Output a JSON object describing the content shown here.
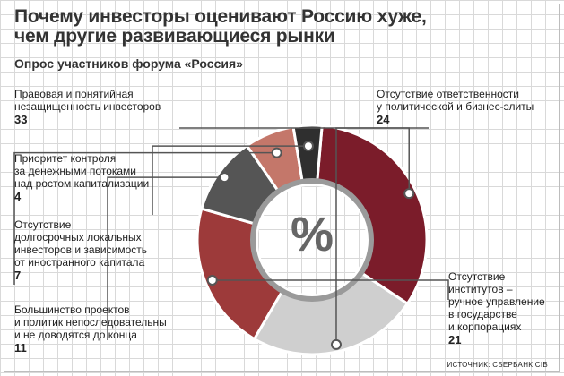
{
  "header": {
    "title": "Почему инвесторы оценивают Россию хуже,\nчем другие развивающиеся рынки",
    "subtitle": "Опрос участников форума «Россия»"
  },
  "center_symbol": "%",
  "source": "ИСТОЧНИК: СБЕРБАНК CIB",
  "colors": {
    "dark_red": "#7b1c2a",
    "light_gray": "#cfcfcf",
    "red": "#9d3a3a",
    "dark_gray": "#555555",
    "salmon": "#c4776a",
    "near_black": "#2f2f2f"
  },
  "chart_data": {
    "type": "pie",
    "donut": true,
    "start_angle_deg": -85,
    "slices": [
      {
        "label": "Правовая и понятийная\nнезащищенность инвесторов",
        "value": 33,
        "color": "#7b1c2a"
      },
      {
        "label": "Отсутствие ответственности\nу политической и бизнес-элиты",
        "value": 24,
        "color": "#cfcfcf"
      },
      {
        "label": "Отсутствие\nинститутов –\nручное управление\nв государстве\nи корпорациях",
        "value": 21,
        "color": "#9d3a3a"
      },
      {
        "label": "Большинство проектов\nи политик непоследовательны\nи не доводятся до конца",
        "value": 11,
        "color": "#555555"
      },
      {
        "label": "Отсутствие\nдолгосрочных локальных\nинвесторов и зависимость\nот иностранного капитала",
        "value": 7,
        "color": "#c4776a"
      },
      {
        "label": "Приоритет контроля\nза денежными потоками\nнад ростом капитализации",
        "value": 4,
        "color": "#2f2f2f"
      }
    ]
  }
}
